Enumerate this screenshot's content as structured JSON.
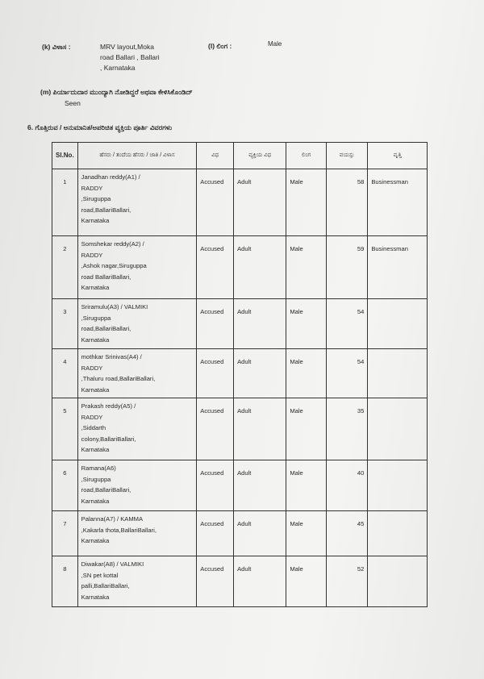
{
  "section_k": {
    "label": "(k) ವಿಳಾಸ :",
    "value_lines": [
      "MRV layout,Moka",
      "road Ballari , Ballari",
      ", Karnataka"
    ]
  },
  "section_l": {
    "label": "(l) ಲಿಂಗ :",
    "value": "Male"
  },
  "section_m": {
    "label": "(m) ಪಿರ್ಯಾದುದಾರ ಮುಂದ್ಯಾಗಿ ನೋಡಿದ್ದರೆ ಅಥವಾ ಕೇಳಿಸಿಕೊಂಡಿದ್",
    "value": "Seen"
  },
  "section6": {
    "title": "6. ಗೊತ್ತಿರುವ / ಅನುಮಾನಿತ/ಅಪರಿಚಿತ ವ್ಯಕ್ತಿಯ ಪೂರ್ತಿ ವಿವರಗಳು"
  },
  "table": {
    "headers": [
      "Sl.No.",
      "ಹೆಸರು / ತಂದೆಯ ಹೆಸರು / ಜಾತಿ / ವಿಳಾಸ",
      "ವಿಧ",
      "ವ್ಯಕ್ತಿಯ ವಿಧ",
      "ಲಿಂಗ",
      "ವಯಸ್ಸು",
      "ವೃತ್ತಿ"
    ],
    "rows": [
      {
        "sl": "1",
        "name": [
          "Janadhan reddy(A1) /",
          "RADDY",
          ",Siruguppa",
          "road,BallariBallari,",
          "Karnataka"
        ],
        "type": "Accused",
        "person_type": "Adult",
        "gender": "Male",
        "age": "58",
        "occupation": "Businessman"
      },
      {
        "sl": "2",
        "name": [
          "Somshekar reddy(A2) /",
          "RADDY",
          ",Ashok nagar,Siruguppa",
          "road BallariBallari,",
          "Karnataka"
        ],
        "type": "Accused",
        "person_type": "Adult",
        "gender": "Male",
        "age": "59",
        "occupation": "Businessman"
      },
      {
        "sl": "3",
        "name": [
          "Sriramulu(A3) / VALMIKI",
          ",Siruguppa",
          "road,BallariBallari,",
          "Karnataka"
        ],
        "type": "Accused",
        "person_type": "Adult",
        "gender": "Male",
        "age": "54",
        "occupation": ""
      },
      {
        "sl": "4",
        "name": [
          "mothkar Srinivas(A4) /",
          "RADDY",
          ",Thaluru road,BallariBallari,",
          "Karnataka"
        ],
        "type": "Accused",
        "person_type": "Adult",
        "gender": "Male",
        "age": "54",
        "occupation": ""
      },
      {
        "sl": "5",
        "name": [
          "Prakash reddy(A5) /",
          "RADDY",
          ",Siddarth",
          "colony,BallariBallari,",
          "Karnataka"
        ],
        "type": "Accused",
        "person_type": "Adult",
        "gender": "Male",
        "age": "35",
        "occupation": ""
      },
      {
        "sl": "6",
        "name": [
          "Ramana(A6)",
          ",Siruguppa",
          "road,BallariBallari,",
          "Karnataka"
        ],
        "type": "Accused",
        "person_type": "Adult",
        "gender": "Male",
        "age": "40",
        "occupation": ""
      },
      {
        "sl": "7",
        "name": [
          "Palanna(A7) / KAMMA",
          ",Kakarla thota,BallariBallari,",
          "Karnataka"
        ],
        "type": "Accused",
        "person_type": "Adult",
        "gender": "Male",
        "age": "45",
        "occupation": ""
      },
      {
        "sl": "8",
        "name": [
          "Diwakar(A8) / VALMIKI",
          ",SN pet kottal",
          "palli,BallariBallari,",
          "Karnataka"
        ],
        "type": "Accused",
        "person_type": "Adult",
        "gender": "Male",
        "age": "52",
        "occupation": ""
      }
    ]
  }
}
